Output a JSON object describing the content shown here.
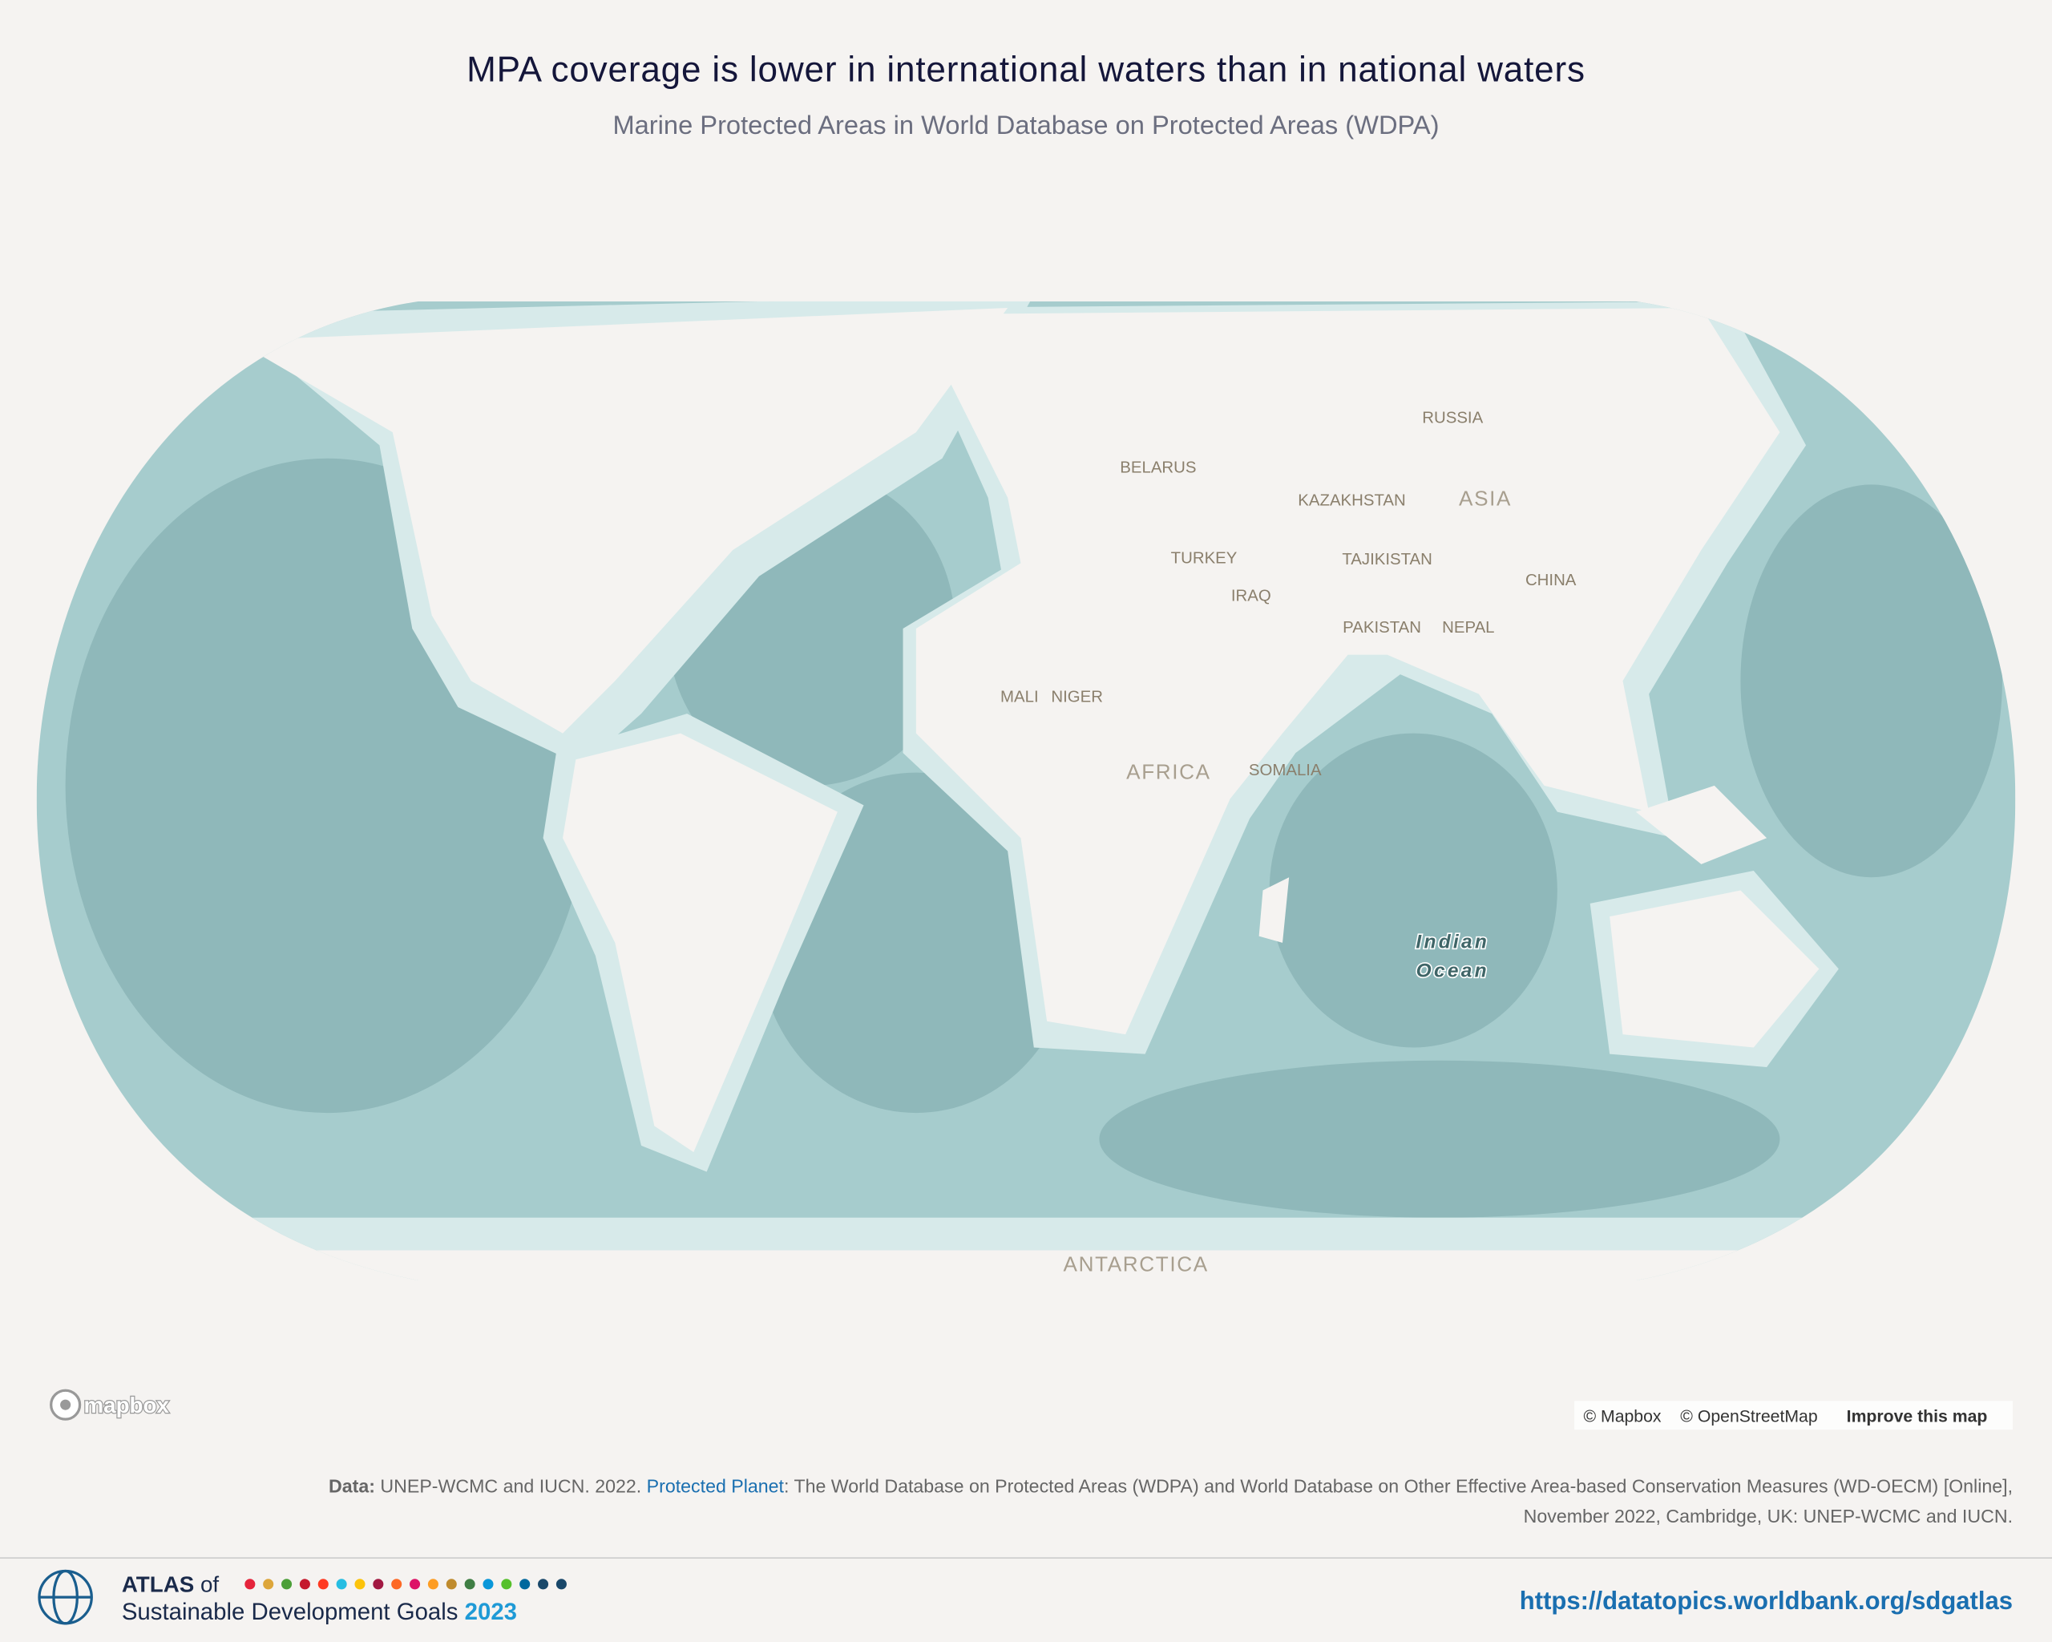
{
  "header": {
    "title": "MPA coverage is lower in international waters than in national waters",
    "subtitle": "Marine Protected Areas in World Database on Protected Areas (WDPA)"
  },
  "map": {
    "labels": [
      "RUSSIA",
      "BELARUS",
      "KAZAKHSTAN",
      "ASIA",
      "TURKEY",
      "TAJIKISTAN",
      "IRAQ",
      "CHINA",
      "PAKISTAN",
      "NEPAL",
      "MALI",
      "NIGER",
      "AFRICA",
      "SOMALIA",
      "ANTARCTICA"
    ],
    "ocean_label": [
      "Indian",
      "Ocean"
    ],
    "logo": "mapbox",
    "attribution": [
      "© Mapbox",
      "© OpenStreetMap",
      "Improve this map"
    ]
  },
  "source": {
    "label": "Data:",
    "text1": "UNEP-WCMC and IUCN. 2022.",
    "link": "Protected Planet",
    "text2": ": The World Database on Protected Areas (WDPA) and World Database on Other Effective Area-based Conservation Measures (WD-OECM) [Online],",
    "line2": "November 2022, Cambridge, UK: UNEP-WCMC and IUCN."
  },
  "footer": {
    "atlas": "ATLAS",
    "of": "of",
    "name": "Sustainable Development Goals",
    "year": "2023",
    "url": "https://datatopics.worldbank.org/sdgatlas"
  }
}
